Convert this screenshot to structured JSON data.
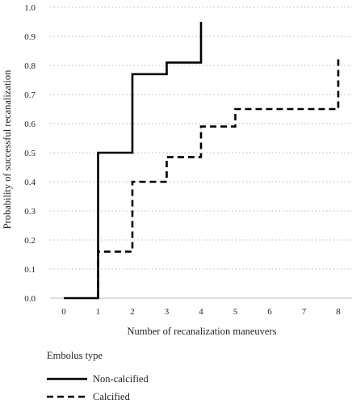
{
  "chart_data": {
    "type": "line",
    "step": true,
    "title": "",
    "xlabel": "Number of recanalization maneuvers",
    "ylabel": "Probability of successful recanalization",
    "x_ticks": [
      "0",
      "1",
      "2",
      "3",
      "4",
      "5",
      "6",
      "7",
      "8"
    ],
    "y_ticks": [
      "0.0",
      "0.1",
      "0.2",
      "0.3",
      "0.4",
      "0.5",
      "0.6",
      "0.7",
      "0.8",
      "0.9",
      "1.0"
    ],
    "ylim": [
      0,
      1
    ],
    "grid": "horizontal dotted",
    "legend": {
      "title": "Embolus type",
      "placement": "bottom-left"
    },
    "series": [
      {
        "name": "Non-calcified",
        "style": "solid",
        "color": "#000000",
        "x": [
          0,
          1,
          1,
          2,
          2,
          3,
          3,
          4,
          4
        ],
        "y": [
          0,
          0,
          0.5,
          0.5,
          0.77,
          0.77,
          0.81,
          0.81,
          0.95
        ]
      },
      {
        "name": "Calcified",
        "style": "dashed",
        "color": "#000000",
        "x": [
          1,
          1,
          2,
          2,
          3,
          3,
          4,
          4,
          5,
          5,
          8,
          8
        ],
        "y": [
          0,
          0.16,
          0.16,
          0.4,
          0.4,
          0.485,
          0.485,
          0.59,
          0.59,
          0.65,
          0.65,
          0.83
        ]
      }
    ]
  }
}
